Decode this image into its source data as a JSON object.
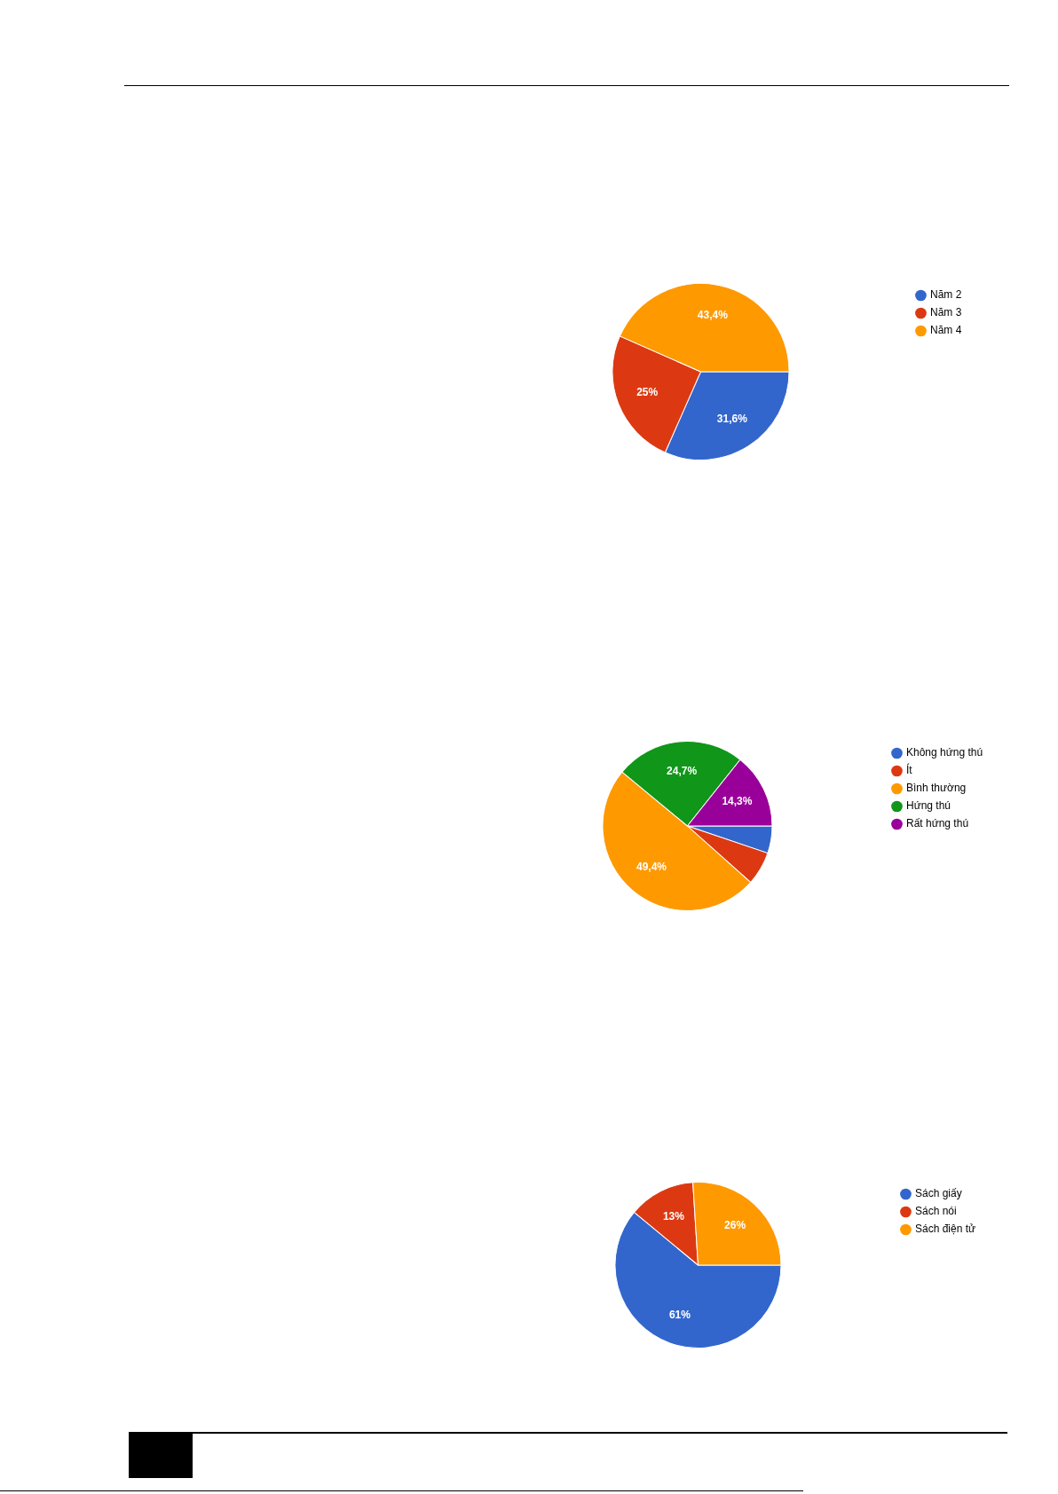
{
  "chart_data": [
    {
      "type": "pie",
      "categories": [
        "Năm 2",
        "Năm 3",
        "Năm 4"
      ],
      "values": [
        31.6,
        25,
        43.4
      ],
      "colors": [
        "#3366cc",
        "#dc3912",
        "#ff9900"
      ],
      "value_labels": [
        "31,6%",
        "25%",
        "43,4%"
      ],
      "legend": "top right"
    },
    {
      "type": "pie",
      "categories": [
        "Không hứng thú",
        "Ít",
        "Bình thường",
        "Hứng thú",
        "Rất hứng thú"
      ],
      "values": [
        5.2,
        6.4,
        49.4,
        24.7,
        14.3
      ],
      "colors": [
        "#3366cc",
        "#dc3912",
        "#ff9900",
        "#109618",
        "#990099"
      ],
      "value_labels": [
        null,
        null,
        "49,4%",
        "24,7%",
        "14,3%"
      ],
      "legend": "top right"
    },
    {
      "type": "pie",
      "categories": [
        "Sách giấy",
        "Sách nói",
        "Sách điện tử"
      ],
      "values": [
        61,
        13,
        26
      ],
      "colors": [
        "#3366cc",
        "#dc3912",
        "#ff9900"
      ],
      "value_labels": [
        "61%",
        "13%",
        "26%"
      ],
      "legend": "top right"
    }
  ]
}
